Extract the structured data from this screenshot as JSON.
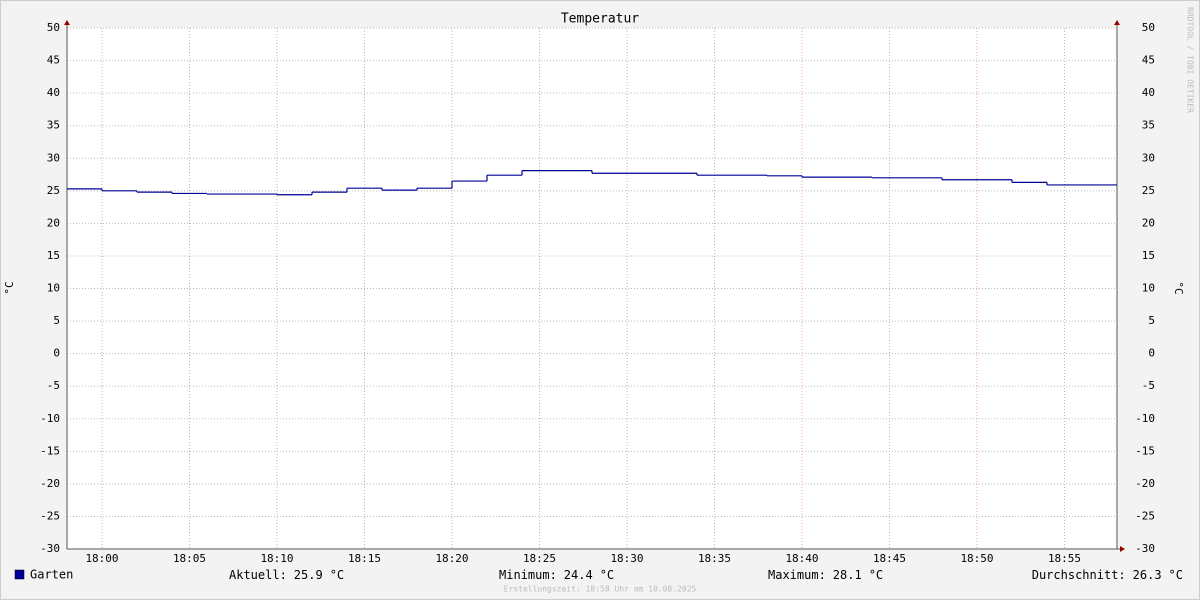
{
  "chart_data": {
    "type": "step",
    "title": "Temperatur",
    "y_label": "°C",
    "y2_label": "°C",
    "watermark": "RRDTOOL / TOBI OETIKER",
    "footer": "Erstellungszeit: 18:58 Uhr am 10.08.2025",
    "xlim": [
      "17:58",
      "18:58"
    ],
    "xticks": [
      "18:00",
      "18:05",
      "18:10",
      "18:15",
      "18:20",
      "18:25",
      "18:30",
      "18:35",
      "18:40",
      "18:45",
      "18:50",
      "18:55"
    ],
    "ylim": [
      -30,
      50
    ],
    "yticks": [
      -30,
      -25,
      -20,
      -15,
      -10,
      -5,
      0,
      5,
      10,
      15,
      20,
      25,
      30,
      35,
      40,
      45,
      50
    ],
    "grid": true,
    "x": [
      "17:58",
      "18:00",
      "18:02",
      "18:04",
      "18:06",
      "18:08",
      "18:10",
      "18:12",
      "18:14",
      "18:16",
      "18:18",
      "18:20",
      "18:22",
      "18:24",
      "18:26",
      "18:28",
      "18:30",
      "18:32",
      "18:34",
      "18:36",
      "18:38",
      "18:40",
      "18:42",
      "18:44",
      "18:46",
      "18:48",
      "18:50",
      "18:52",
      "18:54",
      "18:56"
    ],
    "series": [
      {
        "name": "Garten",
        "color": "#000099",
        "values": [
          25.3,
          25.0,
          24.8,
          24.6,
          24.5,
          24.5,
          24.4,
          24.8,
          25.4,
          25.1,
          25.4,
          26.5,
          27.4,
          28.1,
          28.1,
          27.7,
          27.7,
          27.7,
          27.4,
          27.4,
          27.3,
          27.1,
          27.1,
          27.0,
          27.0,
          26.7,
          26.7,
          26.3,
          25.9,
          25.9
        ]
      }
    ],
    "stats": [
      {
        "label": "Aktuell:",
        "value": 25.9,
        "unit": "°C"
      },
      {
        "label": "Minimum:",
        "value": 24.4,
        "unit": "°C"
      },
      {
        "label": "Maximum:",
        "value": 28.1,
        "unit": "°C"
      },
      {
        "label": "Durchschnitt:",
        "value": 26.3,
        "unit": "°C"
      }
    ]
  }
}
